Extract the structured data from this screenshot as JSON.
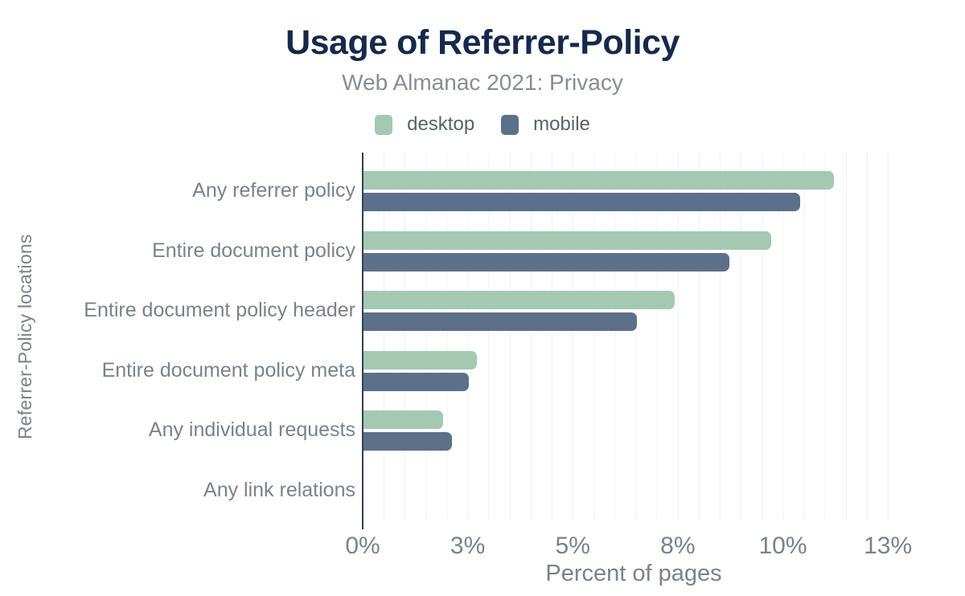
{
  "header": {
    "title": "Usage of Referrer-Policy",
    "subtitle": "Web Almanac 2021: Privacy"
  },
  "legend": {
    "items": [
      {
        "label": "desktop",
        "color": "#a5c8b3"
      },
      {
        "label": "mobile",
        "color": "#5d7089"
      }
    ]
  },
  "chart_data": {
    "type": "bar",
    "orientation": "horizontal",
    "title": "Usage of Referrer-Policy",
    "subtitle": "Web Almanac 2021: Privacy",
    "xlabel": "Percent of pages",
    "ylabel": "Referrer-Policy locations",
    "xlim": [
      0,
      12.9
    ],
    "grid": {
      "vertical_gridlines": true,
      "gridline_step_percent": 0.5
    },
    "legend_position": "top",
    "categories": [
      "Any referrer policy",
      "Entire document policy",
      "Entire document policy header",
      "Entire document policy meta",
      "Any individual requests",
      "Any link relations"
    ],
    "series": [
      {
        "name": "desktop",
        "color": "#a5c8b3",
        "values": [
          11.2,
          9.7,
          7.4,
          2.7,
          1.9,
          0.0
        ]
      },
      {
        "name": "mobile",
        "color": "#5d7089",
        "values": [
          10.4,
          8.7,
          6.5,
          2.5,
          2.1,
          0.0
        ]
      }
    ],
    "xticks": [
      {
        "value": 0,
        "label": "0%"
      },
      {
        "value": 2.5,
        "label": "3%"
      },
      {
        "value": 5,
        "label": "5%"
      },
      {
        "value": 7.5,
        "label": "8%"
      },
      {
        "value": 10,
        "label": "10%"
      },
      {
        "value": 12.5,
        "label": "13%"
      }
    ],
    "value_unit": "%"
  },
  "colors": {
    "background": "#ffffff",
    "title_text": "#15294b",
    "subtitle_text": "#878d96",
    "axis_line": "#363f4e",
    "gridline": "#eff0f2",
    "axis_label_text": "#7b828c",
    "legend_text": "#5a6169",
    "desktop_bar": "#a5c8b3",
    "mobile_bar": "#5d7089"
  }
}
